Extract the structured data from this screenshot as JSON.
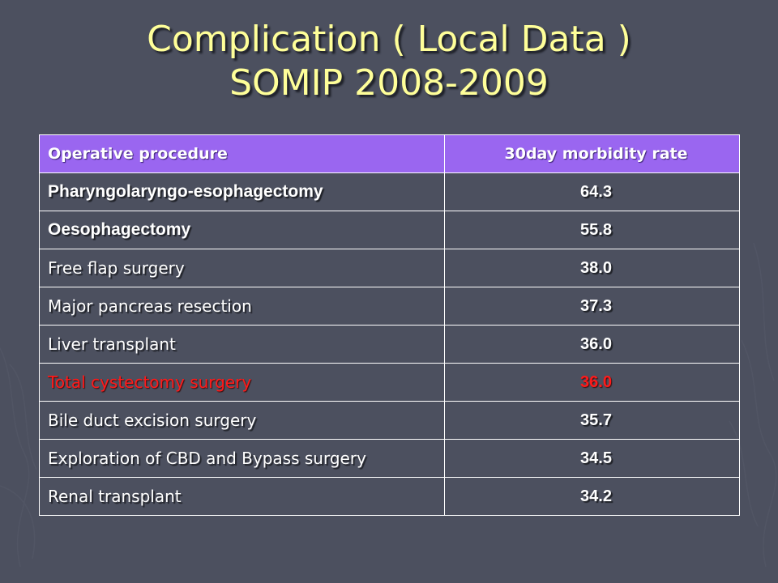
{
  "title": {
    "line1": "Complication ( Local Data )",
    "line2": "SOMIP 2008-2009"
  },
  "table": {
    "headers": [
      "Operative procedure",
      "30day morbidity rate"
    ],
    "rows": [
      {
        "procedure": "Pharyngolaryngo-esophagectomy",
        "rate": "64.3",
        "bold": true
      },
      {
        "procedure": "Oesophagectomy",
        "rate": "55.8",
        "bold": true
      },
      {
        "procedure": "Free flap surgery",
        "rate": "38.0",
        "bold": false
      },
      {
        "procedure": "Major pancreas resection",
        "rate": "37.3",
        "bold": false
      },
      {
        "procedure": "Liver transplant",
        "rate": "36.0",
        "bold": false
      },
      {
        "procedure": "Total cystectomy surgery",
        "rate": "36.0",
        "bold": false,
        "highlight": true
      },
      {
        "procedure": "Bile duct excision surgery",
        "rate": "35.7",
        "bold": false
      },
      {
        "procedure": "Exploration of CBD and Bypass surgery",
        "rate": "34.5",
        "bold": false
      },
      {
        "procedure": "Renal transplant",
        "rate": "34.2",
        "bold": false
      }
    ]
  },
  "colors": {
    "background": "#4c505f",
    "title": "#ffff99",
    "header_fill": "#9a66f0",
    "highlight_text": "#ff1a1a"
  }
}
